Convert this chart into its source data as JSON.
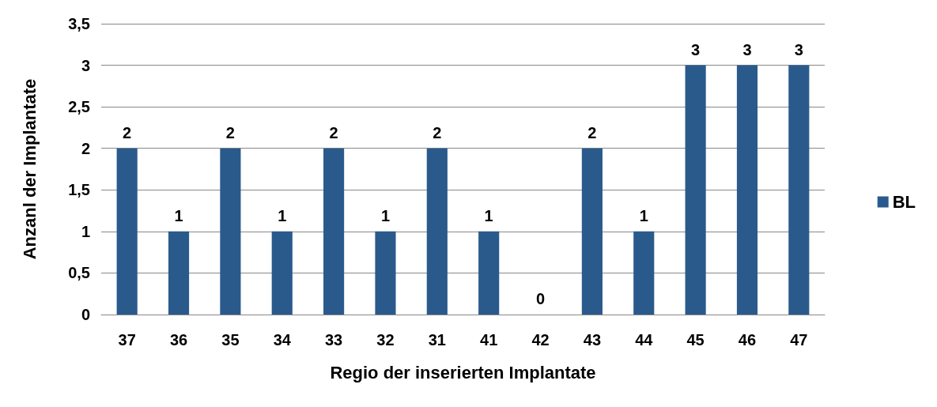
{
  "chart_data": {
    "type": "bar",
    "xlabel": "Regio der inserierten Implantate",
    "ylabel": "Anzanl der Implantate",
    "categories": [
      "37",
      "36",
      "35",
      "34",
      "33",
      "32",
      "31",
      "41",
      "42",
      "43",
      "44",
      "45",
      "46",
      "47"
    ],
    "series": [
      {
        "name": "BL",
        "color": "#2a5a8c",
        "values": [
          2,
          1,
          2,
          1,
          2,
          1,
          2,
          1,
          0,
          2,
          1,
          3,
          3,
          3
        ]
      }
    ],
    "ylim": [
      0,
      3.5
    ],
    "yticks": [
      0,
      {
        "value": 0.5,
        "label": "0,5"
      },
      1,
      {
        "value": 1.5,
        "label": "1,5"
      },
      2,
      {
        "value": 2.5,
        "label": "2,5"
      },
      3,
      {
        "value": 3.5,
        "label": "3,5"
      }
    ],
    "grid": "y",
    "legend": "right",
    "data_labels": true
  }
}
